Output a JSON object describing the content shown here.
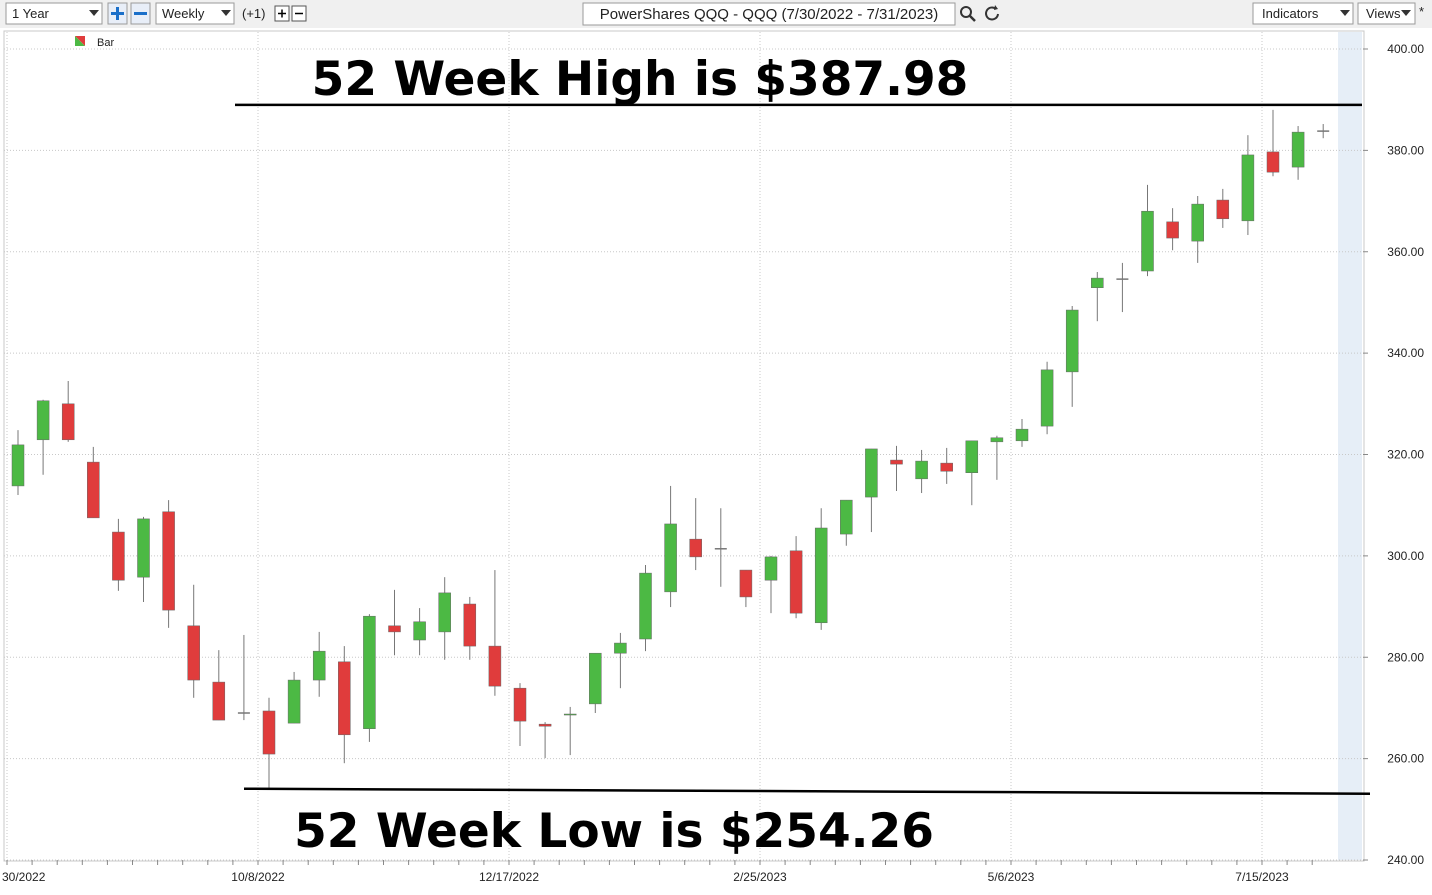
{
  "toolbar": {
    "period": "1 Year",
    "interval": "Weekly",
    "offset": "(+1)",
    "title": "PowerShares QQQ - QQQ (7/30/2022 - 7/31/2023)",
    "indicators": "Indicators",
    "views": "Views",
    "star": "*"
  },
  "chart_data": {
    "type": "candlestick",
    "categories": [
      "30/2022",
      null,
      null,
      null,
      null,
      null,
      null,
      null,
      null,
      null,
      "10/8/2022",
      null,
      null,
      null,
      null,
      null,
      null,
      null,
      null,
      null,
      "12/17/2022",
      null,
      null,
      null,
      null,
      null,
      null,
      null,
      null,
      null,
      "2/25/2023",
      null,
      null,
      null,
      null,
      null,
      null,
      null,
      null,
      null,
      "5/6/2023",
      null,
      null,
      null,
      null,
      null,
      null,
      null,
      null,
      null,
      "7/15/2023",
      null,
      null
    ],
    "series": [
      {
        "name": "Bar",
        "up_color": "#4cb944",
        "down_color": "#e03c3c",
        "flat_color": "#888888",
        "open": [
          313.8,
          322.9,
          330.0,
          318.5,
          304.7,
          295.8,
          308.7,
          286.2,
          275.1,
          269.0,
          269.4,
          267.0,
          275.5,
          279.1,
          265.9,
          286.2,
          283.4,
          285.0,
          290.5,
          282.2,
          273.9,
          266.8,
          268.6,
          270.8,
          280.8,
          283.6,
          292.9,
          303.3,
          301.4,
          297.2,
          295.2,
          301.0,
          286.8,
          304.3,
          311.6,
          318.9,
          315.2,
          318.3,
          316.4,
          322.5,
          322.7,
          325.6,
          336.3,
          352.9,
          354.6,
          356.2,
          365.9,
          362.1,
          370.2,
          366.1,
          379.7,
          376.7,
          383.8
        ],
        "high": [
          324.8,
          330.8,
          334.5,
          321.5,
          307.3,
          307.7,
          311.0,
          294.3,
          281.4,
          284.4,
          272.0,
          277.1,
          285.0,
          282.2,
          288.5,
          293.3,
          289.7,
          295.8,
          291.9,
          297.2,
          274.9,
          267.2,
          270.2,
          280.8,
          284.8,
          298.2,
          313.8,
          311.4,
          309.4,
          297.2,
          300.0,
          303.9,
          309.4,
          311.0,
          321.1,
          321.7,
          320.9,
          321.3,
          322.7,
          323.7,
          327.0,
          338.3,
          349.3,
          356.0,
          357.8,
          373.2,
          368.6,
          371.0,
          372.4,
          383.0,
          387.98,
          384.8,
          385.2
        ],
        "low": [
          312.0,
          316.0,
          322.5,
          307.5,
          293.1,
          290.9,
          285.8,
          272.0,
          267.6,
          267.6,
          254.26,
          267.0,
          272.2,
          259.1,
          263.3,
          280.4,
          280.4,
          279.5,
          279.5,
          272.4,
          262.5,
          260.1,
          260.7,
          269.0,
          273.9,
          281.2,
          289.9,
          297.2,
          293.9,
          289.9,
          288.7,
          287.7,
          285.4,
          302.0,
          304.7,
          312.8,
          312.4,
          314.2,
          310.0,
          315.0,
          321.5,
          324.0,
          329.4,
          346.3,
          348.1,
          355.2,
          360.3,
          357.8,
          364.7,
          363.3,
          374.9,
          374.2,
          382.4
        ],
        "close": [
          321.9,
          330.6,
          322.9,
          307.5,
          295.2,
          307.3,
          289.3,
          275.5,
          267.6,
          269.0,
          260.9,
          275.5,
          281.2,
          264.7,
          288.1,
          285.0,
          287.0,
          292.7,
          282.2,
          274.3,
          267.4,
          266.4,
          268.8,
          280.8,
          282.8,
          296.6,
          306.3,
          299.8,
          301.4,
          291.9,
          299.8,
          288.7,
          305.5,
          311.0,
          321.1,
          318.1,
          318.7,
          316.7,
          322.7,
          323.3,
          325.0,
          336.7,
          348.5,
          354.8,
          354.6,
          368.0,
          362.7,
          369.4,
          366.5,
          379.1,
          375.7,
          383.6,
          383.8
        ]
      }
    ],
    "ylim": [
      240,
      400
    ],
    "yticks": [
      {
        "value": 240,
        "label": "240.00"
      },
      {
        "value": 260,
        "label": "260.00"
      },
      {
        "value": 280,
        "label": "280.00"
      },
      {
        "value": 300,
        "label": "300.00"
      },
      {
        "value": 320,
        "label": "320.00"
      },
      {
        "value": 340,
        "label": "340.00"
      },
      {
        "value": 360,
        "label": "360.00"
      },
      {
        "value": 380,
        "label": "380.00"
      },
      {
        "value": 400,
        "label": "400.00"
      }
    ],
    "grid": true,
    "annotations": [
      {
        "text": "52 Week High is $387.98"
      },
      {
        "text": "52 Week Low is $254.26"
      }
    ]
  }
}
